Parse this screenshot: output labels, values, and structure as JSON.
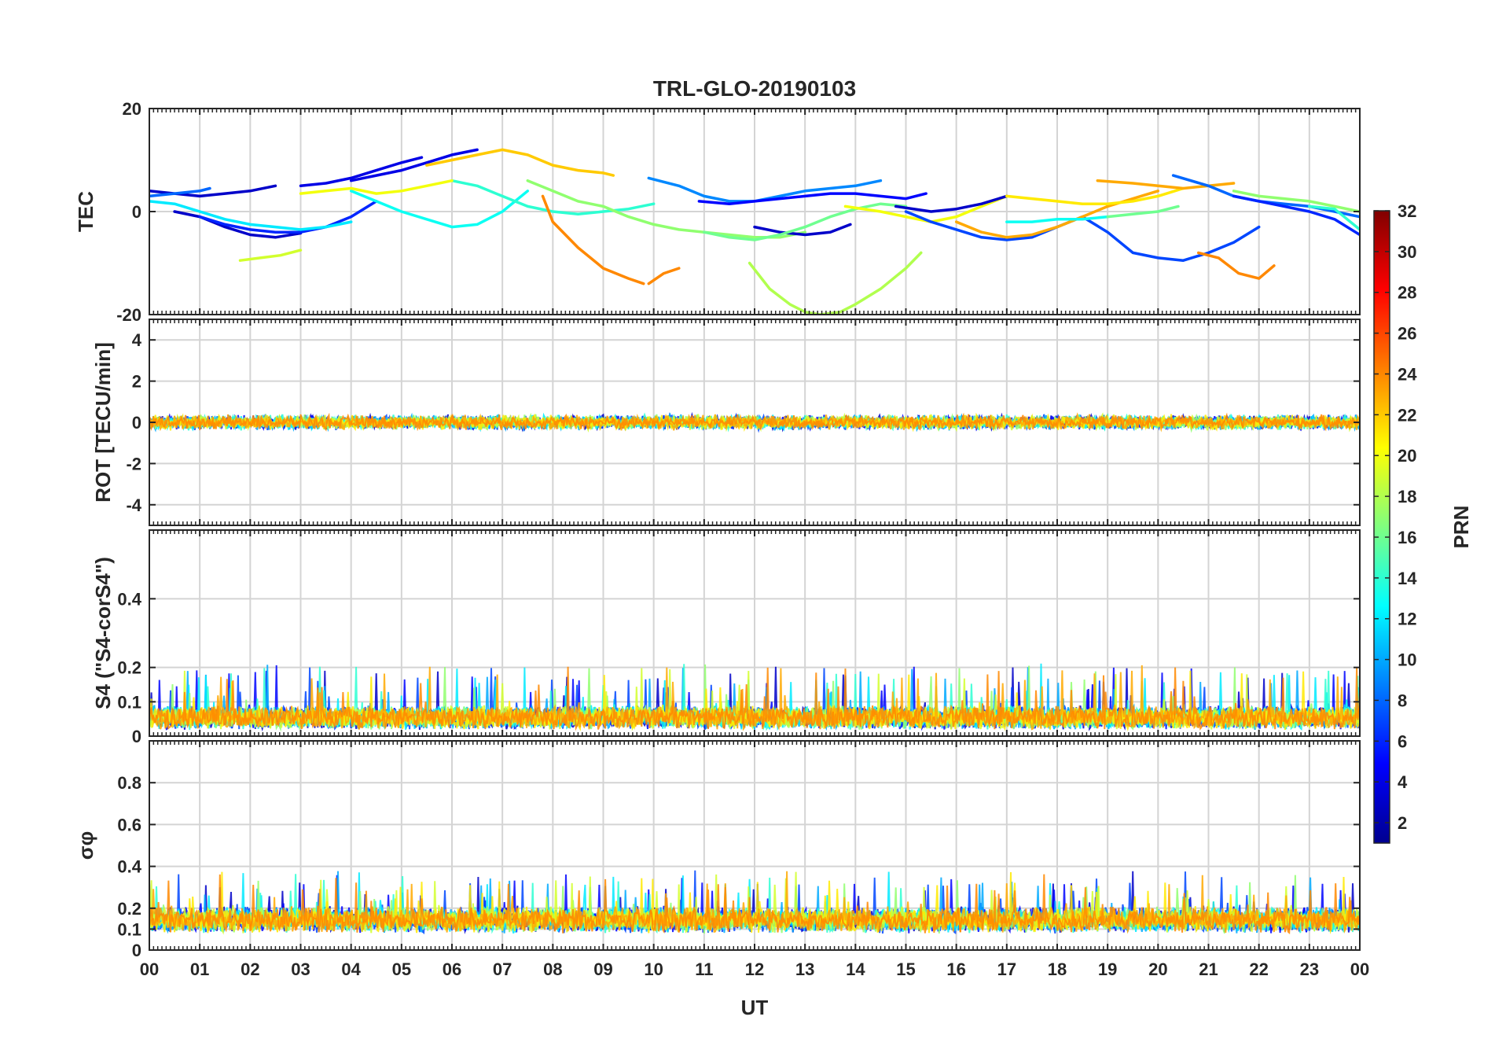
{
  "chart_data": {
    "type": "line",
    "title": "TRL-GLO-20190103",
    "xlabel": "UT",
    "x_ticks": [
      "00",
      "01",
      "02",
      "03",
      "04",
      "05",
      "06",
      "07",
      "08",
      "09",
      "10",
      "11",
      "12",
      "13",
      "14",
      "15",
      "16",
      "17",
      "18",
      "19",
      "20",
      "21",
      "22",
      "23",
      "00"
    ],
    "xlim": [
      0,
      24
    ],
    "grid": true,
    "colorbar": {
      "label": "PRN",
      "range": [
        1,
        32
      ],
      "ticks": [
        "2",
        "4",
        "6",
        "8",
        "10",
        "12",
        "14",
        "16",
        "18",
        "20",
        "22",
        "24",
        "26",
        "28",
        "30",
        "32"
      ],
      "colormap": "jet"
    },
    "panels": [
      {
        "ylabel": "TEC",
        "ylim": [
          -20,
          20
        ],
        "yticks": [
          "-20",
          "0",
          "20"
        ],
        "series": [
          {
            "prn": 3,
            "x": [
              0,
              0.5,
              1,
              1.5,
              2,
              2.5
            ],
            "y": [
              4,
              3.5,
              3,
              3.5,
              4,
              5
            ]
          },
          {
            "prn": 3,
            "x": [
              0.5,
              1,
              1.5,
              2,
              2.5,
              3
            ],
            "y": [
              0,
              -1,
              -3,
              -4.5,
              -5,
              -4.2
            ]
          },
          {
            "prn": 4,
            "x": [
              3,
              3.5,
              4,
              4.5,
              5,
              5.4
            ],
            "y": [
              5,
              5.5,
              6.5,
              8,
              9.5,
              10.5
            ]
          },
          {
            "prn": 4,
            "x": [
              4,
              4.5,
              5,
              5.5,
              6,
              6.5
            ],
            "y": [
              6,
              7,
              8,
              9.5,
              11,
              12
            ]
          },
          {
            "prn": 6,
            "x": [
              1,
              1.5,
              2,
              2.5,
              3,
              3.5,
              4,
              4.5
            ],
            "y": [
              -1,
              -2.5,
              -3.5,
              -4,
              -4,
              -3,
              -1,
              2
            ]
          },
          {
            "prn": 8,
            "x": [
              0,
              0.5,
              1,
              1.2
            ],
            "y": [
              3,
              3.5,
              4,
              4.5
            ]
          },
          {
            "prn": 12,
            "x": [
              0,
              0.5,
              1,
              1.5,
              2,
              2.5,
              3,
              3.5,
              4
            ],
            "y": [
              2,
              1.5,
              0,
              -1.5,
              -2.5,
              -3,
              -3.5,
              -3,
              -2
            ]
          },
          {
            "prn": 13,
            "x": [
              4,
              4.5,
              5,
              5.5,
              6,
              6.5,
              7,
              7.5
            ],
            "y": [
              4,
              2,
              0,
              -1.5,
              -3,
              -2.5,
              0,
              4
            ]
          },
          {
            "prn": 14,
            "x": [
              6,
              6.5,
              7,
              7.5,
              8,
              8.5,
              9,
              9.5,
              10
            ],
            "y": [
              6,
              5,
              3,
              1,
              0,
              -0.5,
              0,
              0.5,
              1.5
            ]
          },
          {
            "prn": 17,
            "x": [
              7.5,
              8,
              8.5,
              9,
              9.5,
              10,
              10.5,
              11,
              11.5,
              12,
              12.5,
              13
            ],
            "y": [
              6,
              4,
              2,
              1,
              -1,
              -2.5,
              -3.5,
              -4,
              -4.5,
              -5,
              -5,
              -4
            ]
          },
          {
            "prn": 19,
            "x": [
              1.8,
              2.2,
              2.6,
              3
            ],
            "y": [
              -9.5,
              -9,
              -8.5,
              -7.5
            ]
          },
          {
            "prn": 20,
            "x": [
              3,
              3.5,
              4,
              4.5,
              5,
              5.5,
              6
            ],
            "y": [
              3.5,
              4,
              4.5,
              3.5,
              4,
              5,
              6
            ]
          },
          {
            "prn": 22,
            "x": [
              5.5,
              6,
              6.5,
              7,
              7.5,
              8,
              8.5,
              9,
              9.2
            ],
            "y": [
              9,
              10,
              11,
              12,
              11,
              9,
              8,
              7.5,
              7
            ]
          },
          {
            "prn": 24,
            "x": [
              7.8,
              8,
              8.5,
              9,
              9.5,
              9.8
            ],
            "y": [
              3,
              -2,
              -7,
              -11,
              -13,
              -14
            ]
          },
          {
            "prn": 24,
            "x": [
              9.9,
              10.2,
              10.5
            ],
            "y": [
              -14,
              -12,
              -11
            ]
          },
          {
            "prn": 9,
            "x": [
              9.9,
              10.5,
              11,
              11.5,
              12,
              12.5,
              13,
              13.5,
              14,
              14.5
            ],
            "y": [
              6.5,
              5,
              3,
              2,
              2,
              3,
              4,
              4.5,
              5,
              6
            ]
          },
          {
            "prn": 5,
            "x": [
              10.9,
              11.5,
              12,
              12.5,
              13,
              13.5,
              14,
              14.5,
              15,
              15.4
            ],
            "y": [
              2,
              1.5,
              2,
              2.5,
              3,
              3.5,
              3.5,
              3,
              2.5,
              3.5
            ]
          },
          {
            "prn": 18,
            "x": [
              11.9,
              12.3,
              12.7,
              13,
              13.3,
              13.7,
              14,
              14.5,
              15,
              15.3
            ],
            "y": [
              -10,
              -15,
              -18,
              -19.5,
              -20,
              -19.5,
              -18,
              -15,
              -11,
              -8
            ]
          },
          {
            "prn": 3,
            "x": [
              12,
              12.5,
              13,
              13.5,
              13.9
            ],
            "y": [
              -3,
              -4,
              -4.5,
              -4,
              -2.5
            ]
          },
          {
            "prn": 16,
            "x": [
              11,
              11.5,
              12,
              12.5,
              13,
              13.5,
              14,
              14.5,
              15
            ],
            "y": [
              -4,
              -5,
              -5.5,
              -4.5,
              -3,
              -1,
              0.5,
              1.5,
              1
            ]
          },
          {
            "prn": 20,
            "x": [
              13.8,
              14.5,
              15,
              15.5,
              16,
              16.5,
              17
            ],
            "y": [
              1,
              0,
              -1,
              -2,
              -1,
              1,
              3
            ]
          },
          {
            "prn": 7,
            "x": [
              15,
              15.5,
              16,
              16.5,
              17,
              17.5,
              18,
              18.5,
              19,
              19.5,
              20,
              20.5,
              21,
              21.5,
              22
            ],
            "y": [
              0,
              -2,
              -3.5,
              -5,
              -5.5,
              -5,
              -3,
              -1,
              -4,
              -8,
              -9,
              -9.5,
              -8,
              -6,
              -3
            ]
          },
          {
            "prn": 3,
            "x": [
              14.8,
              15.5,
              16,
              16.5,
              17
            ],
            "y": [
              1,
              0,
              0.5,
              1.5,
              3
            ]
          },
          {
            "prn": 23,
            "x": [
              16,
              16.5,
              17,
              17.5,
              18,
              18.5,
              19,
              19.5,
              20
            ],
            "y": [
              -2,
              -4,
              -5,
              -4.5,
              -3,
              -1,
              1,
              2.5,
              4
            ]
          },
          {
            "prn": 21,
            "x": [
              17,
              17.5,
              18,
              18.5,
              19,
              19.5,
              20,
              20.5
            ],
            "y": [
              3,
              2.5,
              2,
              1.5,
              1.5,
              2,
              3,
              4.5
            ]
          },
          {
            "prn": 13,
            "x": [
              17,
              17.5,
              18,
              18.5,
              19
            ],
            "y": [
              -2,
              -2,
              -1.5,
              -1.5,
              -1
            ]
          },
          {
            "prn": 16,
            "x": [
              19,
              19.5,
              20,
              20.4
            ],
            "y": [
              -1,
              -0.5,
              0,
              1
            ]
          },
          {
            "prn": 23,
            "x": [
              18.8,
              19.5,
              20,
              20.5,
              21,
              21.5
            ],
            "y": [
              6,
              5.5,
              5,
              4.5,
              5,
              5.5
            ]
          },
          {
            "prn": 24,
            "x": [
              20.8,
              21.2,
              21.6,
              22,
              22.3
            ],
            "y": [
              -8,
              -9,
              -12,
              -13,
              -10.5
            ]
          },
          {
            "prn": 8,
            "x": [
              20.3,
              21,
              21.5,
              22,
              22.5,
              23,
              23.5,
              24
            ],
            "y": [
              7,
              5,
              3,
              2,
              1.5,
              1,
              0,
              -1
            ]
          },
          {
            "prn": 17,
            "x": [
              21.5,
              22,
              22.5,
              23,
              23.5,
              24
            ],
            "y": [
              4,
              3,
              2.5,
              2,
              1,
              0
            ]
          },
          {
            "prn": 6,
            "x": [
              21.5,
              22,
              22.5,
              23,
              23.5,
              24
            ],
            "y": [
              3,
              2,
              1,
              0,
              -1.5,
              -4.5
            ]
          },
          {
            "prn": 14,
            "x": [
              23,
              23.5,
              24
            ],
            "y": [
              1,
              0.5,
              -3.5
            ]
          }
        ]
      },
      {
        "ylabel": "ROT [TECU/min]",
        "ylim": [
          -5,
          5
        ],
        "yticks": [
          "-4",
          "-2",
          "0",
          "2",
          "4"
        ],
        "noise_band": {
          "center": 0,
          "amplitude": 0.4
        }
      },
      {
        "ylabel": "S4 (\"S4-corS4\")",
        "ylim": [
          0,
          0.6
        ],
        "yticks": [
          "0",
          "0.1",
          "0.2",
          "0.4"
        ],
        "noise_band": {
          "baseline": 0.03,
          "typical_max": 0.12,
          "peak_max": 0.21
        }
      },
      {
        "ylabel": "σφ",
        "ylim": [
          0,
          1
        ],
        "yticks": [
          "0",
          "0.1",
          "0.2",
          "0.4",
          "0.6",
          "0.8"
        ],
        "noise_band": {
          "baseline": 0.13,
          "typical_max": 0.22,
          "peak_max": 0.37
        }
      }
    ]
  }
}
